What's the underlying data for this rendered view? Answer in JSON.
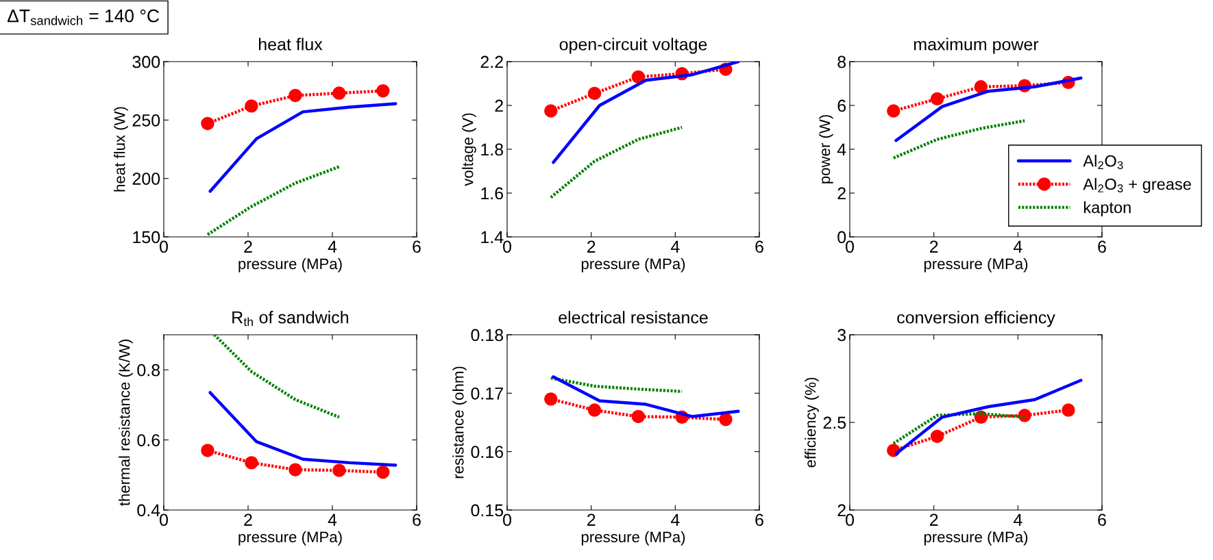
{
  "chart_data": [
    {
      "type": "line",
      "title": "heat flux",
      "xlabel": "pressure (MPa)",
      "ylabel": "heat flux (W)",
      "xlim": [
        0,
        6
      ],
      "xticks": [
        0,
        2,
        4,
        6
      ],
      "ylim": [
        150,
        300
      ],
      "yticks": [
        150,
        200,
        250,
        300
      ],
      "annotations": [
        "ΔT$_{sandwich}$ = 140 °C"
      ],
      "series": [
        {
          "color": "#0000ff",
          "line_style": "solid",
          "marker": "none",
          "x": [
            1.1,
            2.2,
            3.3,
            4.4,
            5.5
          ],
          "values": [
            189,
            234,
            257,
            261,
            264
          ]
        },
        {
          "color": "#ff0000",
          "line_style": "dotted",
          "marker": "circle",
          "x": [
            1.04,
            2.08,
            3.12,
            4.16,
            5.2
          ],
          "values": [
            247,
            262,
            271,
            273,
            275
          ]
        },
        {
          "color": "#008000",
          "line_style": "dotted",
          "marker": "none",
          "x": [
            1.04,
            2.08,
            3.12,
            4.16
          ],
          "values": [
            152,
            176,
            196,
            210
          ]
        }
      ]
    },
    {
      "type": "line",
      "title": "open-circuit voltage",
      "xlabel": "pressure (MPa)",
      "ylabel": "voltage (V)",
      "xlim": [
        0,
        6
      ],
      "xticks": [
        0,
        2,
        4,
        6
      ],
      "ylim": [
        1.4,
        2.2
      ],
      "yticks": [
        1.4,
        1.6,
        1.8,
        2,
        2.2
      ],
      "series": [
        {
          "color": "#0000ff",
          "line_style": "solid",
          "marker": "none",
          "x": [
            1.1,
            2.2,
            3.3,
            4.4,
            5.5
          ],
          "values": [
            1.74,
            2.0,
            2.115,
            2.14,
            2.2
          ]
        },
        {
          "color": "#ff0000",
          "line_style": "dotted",
          "marker": "circle",
          "x": [
            1.04,
            2.08,
            3.12,
            4.16,
            5.2
          ],
          "values": [
            1.975,
            2.055,
            2.13,
            2.145,
            2.165
          ]
        },
        {
          "color": "#008000",
          "line_style": "dotted",
          "marker": "none",
          "x": [
            1.04,
            2.08,
            3.12,
            4.16
          ],
          "values": [
            1.58,
            1.745,
            1.845,
            1.9
          ]
        }
      ]
    },
    {
      "type": "line",
      "title": "maximum power",
      "xlabel": "pressure (MPa)",
      "ylabel": "power (W)",
      "xlim": [
        0,
        6
      ],
      "xticks": [
        0,
        2,
        4,
        6
      ],
      "ylim": [
        0,
        8
      ],
      "yticks": [
        0,
        2,
        4,
        6,
        8
      ],
      "legend": "bottom right",
      "series": [
        {
          "name": "Al$_{2}$O$_{3}$",
          "color": "#0000ff",
          "line_style": "solid",
          "marker": "none",
          "x": [
            1.1,
            2.2,
            3.3,
            4.4,
            5.5
          ],
          "values": [
            4.4,
            5.95,
            6.65,
            6.85,
            7.25
          ]
        },
        {
          "name": "Al$_{2}$O$_{3}$ + grease",
          "color": "#ff0000",
          "line_style": "dotted",
          "marker": "circle",
          "x": [
            1.04,
            2.08,
            3.12,
            4.16,
            5.2
          ],
          "values": [
            5.75,
            6.3,
            6.85,
            6.9,
            7.05
          ]
        },
        {
          "name": "kapton",
          "color": "#008000",
          "line_style": "dotted",
          "marker": "none",
          "x": [
            1.04,
            2.08,
            3.12,
            4.16
          ],
          "values": [
            3.6,
            4.45,
            4.95,
            5.3
          ]
        }
      ]
    },
    {
      "type": "line",
      "title": "R$_{th}$ of sandwich",
      "xlabel": "pressure (MPa)",
      "ylabel": "thermal resistance (K/W)",
      "xlim": [
        0,
        6
      ],
      "xticks": [
        0,
        2,
        4,
        6
      ],
      "ylim": [
        0.4,
        0.9
      ],
      "yticks": [
        0.4,
        0.6,
        0.8
      ],
      "series": [
        {
          "color": "#0000ff",
          "line_style": "solid",
          "marker": "none",
          "x": [
            1.1,
            2.2,
            3.3,
            4.4,
            5.5
          ],
          "values": [
            0.735,
            0.595,
            0.545,
            0.535,
            0.528
          ]
        },
        {
          "color": "#ff0000",
          "line_style": "dotted",
          "marker": "circle",
          "x": [
            1.04,
            2.08,
            3.12,
            4.16,
            5.2
          ],
          "values": [
            0.57,
            0.535,
            0.515,
            0.513,
            0.508
          ]
        },
        {
          "color": "#008000",
          "line_style": "dotted",
          "marker": "none",
          "x": [
            1.2,
            2.08,
            3.12,
            4.16
          ],
          "values": [
            0.9,
            0.795,
            0.715,
            0.665
          ]
        }
      ]
    },
    {
      "type": "line",
      "title": "electrical resistance",
      "xlabel": "pressure (MPa)",
      "ylabel": "resistance (ohm)",
      "xlim": [
        0,
        6
      ],
      "xticks": [
        0,
        2,
        4,
        6
      ],
      "ylim": [
        0.15,
        0.18
      ],
      "yticks": [
        0.15,
        0.16,
        0.17,
        0.18
      ],
      "series": [
        {
          "color": "#0000ff",
          "line_style": "solid",
          "marker": "none",
          "x": [
            1.1,
            2.2,
            3.3,
            4.4,
            5.5
          ],
          "values": [
            0.1728,
            0.1687,
            0.1681,
            0.166,
            0.1669
          ]
        },
        {
          "color": "#ff0000",
          "line_style": "dotted",
          "marker": "circle",
          "x": [
            1.04,
            2.08,
            3.12,
            4.16,
            5.2
          ],
          "values": [
            0.169,
            0.1671,
            0.166,
            0.1659,
            0.1655
          ]
        },
        {
          "color": "#008000",
          "line_style": "dotted",
          "marker": "none",
          "x": [
            1.04,
            2.08,
            3.12,
            4.16
          ],
          "values": [
            0.1726,
            0.1712,
            0.1707,
            0.1703
          ]
        }
      ]
    },
    {
      "type": "line",
      "title": "conversion efficiency",
      "xlabel": "pressure (MPa)",
      "ylabel": "efficiency (%)",
      "xlim": [
        0,
        6
      ],
      "xticks": [
        0,
        2,
        4,
        6
      ],
      "ylim": [
        2,
        3
      ],
      "yticks": [
        2,
        2.5,
        3
      ],
      "series": [
        {
          "color": "#0000ff",
          "line_style": "solid",
          "marker": "none",
          "x": [
            1.1,
            2.2,
            3.3,
            4.4,
            5.5
          ],
          "values": [
            2.32,
            2.53,
            2.59,
            2.63,
            2.74
          ]
        },
        {
          "color": "#ff0000",
          "line_style": "dotted",
          "marker": "circle",
          "x": [
            1.04,
            2.08,
            3.12,
            4.16,
            5.2
          ],
          "values": [
            2.34,
            2.42,
            2.53,
            2.54,
            2.57
          ]
        },
        {
          "color": "#008000",
          "line_style": "dotted",
          "marker": "none",
          "x": [
            1.04,
            2.08,
            3.12,
            4.16
          ],
          "values": [
            2.38,
            2.54,
            2.55,
            2.53
          ]
        }
      ]
    }
  ]
}
